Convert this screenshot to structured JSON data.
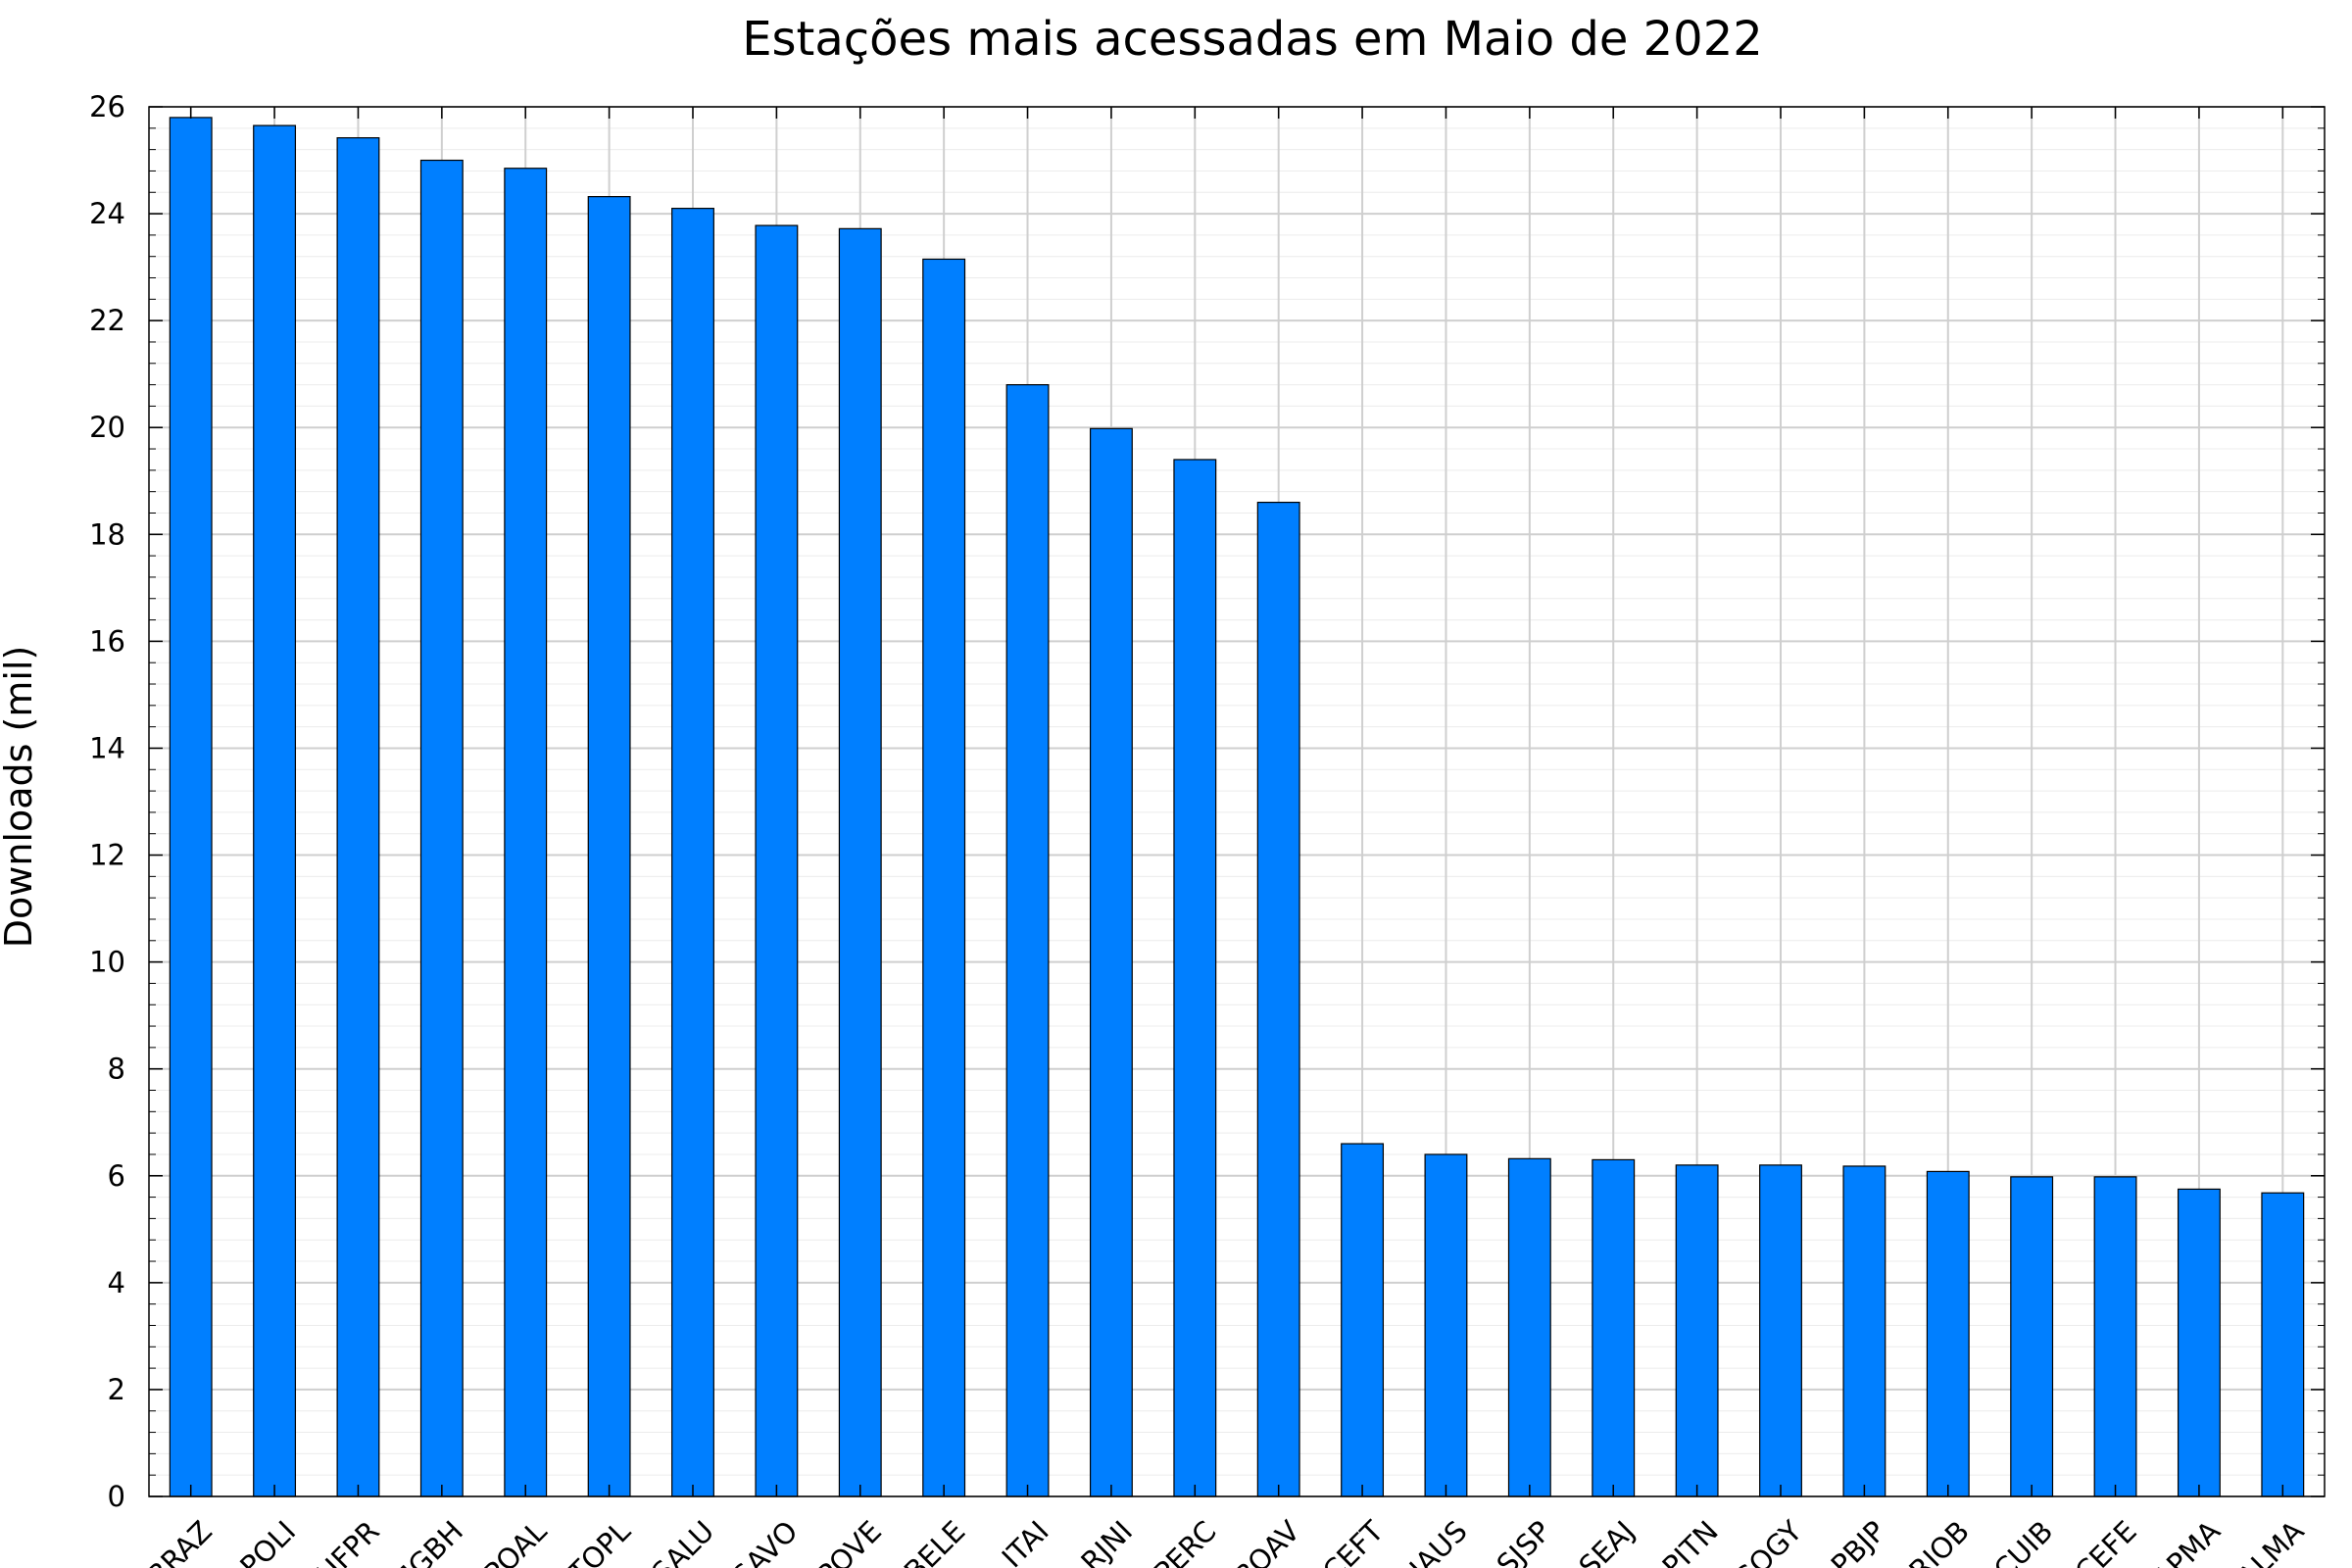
{
  "chart_data": {
    "type": "bar",
    "title": "Estações mais acessadas em Maio de 2022",
    "xlabel": "",
    "ylabel": "Downloads (mil)",
    "ylim": [
      0,
      26
    ],
    "y_major_ticks": [
      0,
      2,
      4,
      6,
      8,
      10,
      12,
      14,
      16,
      18,
      20,
      22,
      24,
      26
    ],
    "y_minor_step": 0.4,
    "grid": true,
    "legend": "none",
    "bar_color": "#007fff",
    "bar_edge_color": "#000000",
    "grid_color": "#cfcfcf",
    "minor_grid_color": "#ececec",
    "categories": [
      "BRAZ",
      "POLI",
      "UFPR",
      "MGBH",
      "POAL",
      "TOPL",
      "SALU",
      "SAVO",
      "POVE",
      "BELE",
      "ITAI",
      "RJNI",
      "PERC",
      "BOAV",
      "CEFT",
      "NAUS",
      "SJSP",
      "SEAJ",
      "PITN",
      "GOGY",
      "PBJP",
      "RIOB",
      "CUIB",
      "CEFE",
      "APMA",
      "ALMA"
    ],
    "values": [
      25.8,
      25.65,
      25.42,
      25.0,
      24.85,
      24.32,
      24.1,
      23.78,
      23.72,
      23.15,
      20.8,
      19.98,
      19.4,
      18.6,
      6.6,
      6.4,
      6.32,
      6.3,
      6.2,
      6.2,
      6.18,
      6.08,
      5.98,
      5.98,
      5.75,
      5.68
    ]
  }
}
